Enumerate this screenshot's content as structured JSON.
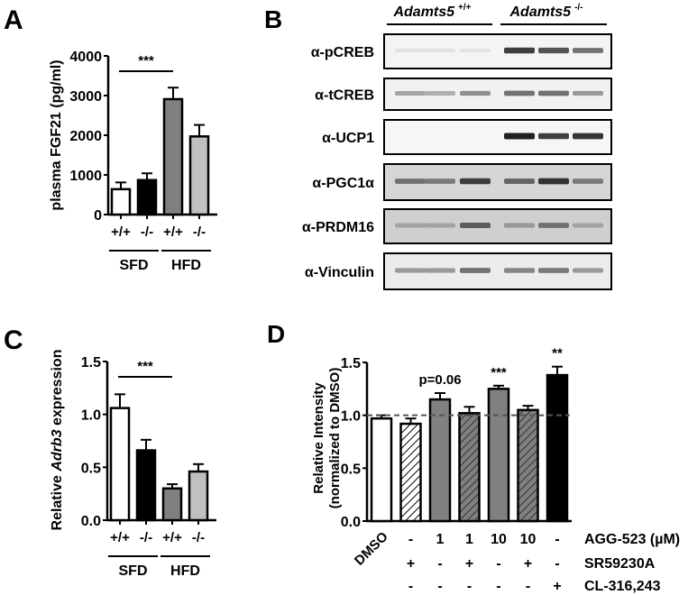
{
  "panels": {
    "A": {
      "label": "A"
    },
    "B": {
      "label": "B"
    },
    "C": {
      "label": "C"
    },
    "D": {
      "label": "D"
    }
  },
  "chart_data": [
    {
      "panel": "A",
      "type": "bar",
      "ylabel": "plasma FGF21 (pg/ml)",
      "ylim": [
        0,
        4000
      ],
      "yticks": [
        "0",
        "1000",
        "2000",
        "3000",
        "4000"
      ],
      "categories": [
        "+/+",
        "-/-",
        "+/+",
        "-/-"
      ],
      "groups": [
        {
          "name": "SFD",
          "members": [
            0,
            1
          ]
        },
        {
          "name": "HFD",
          "members": [
            2,
            3
          ]
        }
      ],
      "values": [
        640,
        870,
        2910,
        1970
      ],
      "errors": [
        170,
        170,
        290,
        290
      ],
      "colors": [
        "#ffffff",
        "#000000",
        "#808080",
        "#c0c0c0"
      ],
      "annotations": [
        {
          "text": "***",
          "between": [
            0,
            2
          ]
        }
      ],
      "grid": false
    },
    {
      "panel": "B",
      "type": "table",
      "title": "Western blot",
      "column_groups": [
        {
          "name": "Adamts5",
          "superscript": "+/+",
          "lanes": 3
        },
        {
          "name": "Adamts5",
          "superscript": "-/-",
          "lanes": 3
        }
      ],
      "rows": [
        "α-pCREB",
        "α-tCREB",
        "α-UCP1",
        "α-PGC1α",
        "α-PRDM16",
        "α-Vinculin"
      ],
      "band_intensity": [
        [
          0.05,
          0.05,
          0.04,
          0.85,
          0.75,
          0.6
        ],
        [
          0.35,
          0.3,
          0.45,
          0.6,
          0.6,
          0.4
        ],
        [
          0.0,
          0.0,
          0.0,
          1.0,
          0.85,
          0.9
        ],
        [
          0.6,
          0.55,
          0.85,
          0.65,
          0.9,
          0.55
        ],
        [
          0.35,
          0.35,
          0.7,
          0.4,
          0.6,
          0.35
        ],
        [
          0.4,
          0.4,
          0.6,
          0.5,
          0.55,
          0.4
        ]
      ]
    },
    {
      "panel": "C",
      "type": "bar",
      "ylabel_prefix": "Relative ",
      "ylabel_italic": "Adrb3",
      "ylabel_suffix": " expression",
      "ylim": [
        0,
        1.5
      ],
      "yticks": [
        "0.0",
        "0.5",
        "1.0",
        "1.5"
      ],
      "categories": [
        "+/+",
        "-/-",
        "+/+",
        "-/-"
      ],
      "groups": [
        {
          "name": "SFD",
          "members": [
            0,
            1
          ]
        },
        {
          "name": "HFD",
          "members": [
            2,
            3
          ]
        }
      ],
      "values": [
        1.06,
        0.66,
        0.3,
        0.46
      ],
      "errors": [
        0.13,
        0.1,
        0.04,
        0.07
      ],
      "colors": [
        "#ffffff",
        "#000000",
        "#808080",
        "#c0c0c0"
      ],
      "annotations": [
        {
          "text": "***",
          "between": [
            0,
            2
          ]
        }
      ],
      "grid": false
    },
    {
      "panel": "D",
      "type": "bar",
      "ylabel": [
        "Relative Intensity",
        "(normalized to DMSO)"
      ],
      "ylim": [
        0,
        1.5
      ],
      "yticks": [
        "0.0",
        "0.5",
        "1.0",
        "1.5"
      ],
      "reference_line": 1.0,
      "first_category": "DMSO",
      "treatment_rows": [
        {
          "name": "AGG-523 (µM)",
          "values": [
            "-",
            "1",
            "1",
            "10",
            "10",
            "-"
          ]
        },
        {
          "name": "SR59230A",
          "values": [
            "+",
            "-",
            "+",
            "-",
            "+",
            "-"
          ]
        },
        {
          "name": "CL-316,243",
          "values": [
            "-",
            "-",
            "-",
            "-",
            "-",
            "+"
          ]
        }
      ],
      "values": [
        0.97,
        0.92,
        1.15,
        1.02,
        1.25,
        1.05,
        1.38
      ],
      "errors": [
        0.03,
        0.05,
        0.06,
        0.06,
        0.03,
        0.04,
        0.08
      ],
      "fills": [
        "white",
        "white-hatched",
        "gray",
        "gray-hatched",
        "gray",
        "gray-hatched",
        "black"
      ],
      "annotations": [
        {
          "text": "p=0.06",
          "bar": 2
        },
        {
          "text": "***",
          "bar": 4
        },
        {
          "text": "**",
          "bar": 6
        }
      ],
      "grid": false
    }
  ]
}
